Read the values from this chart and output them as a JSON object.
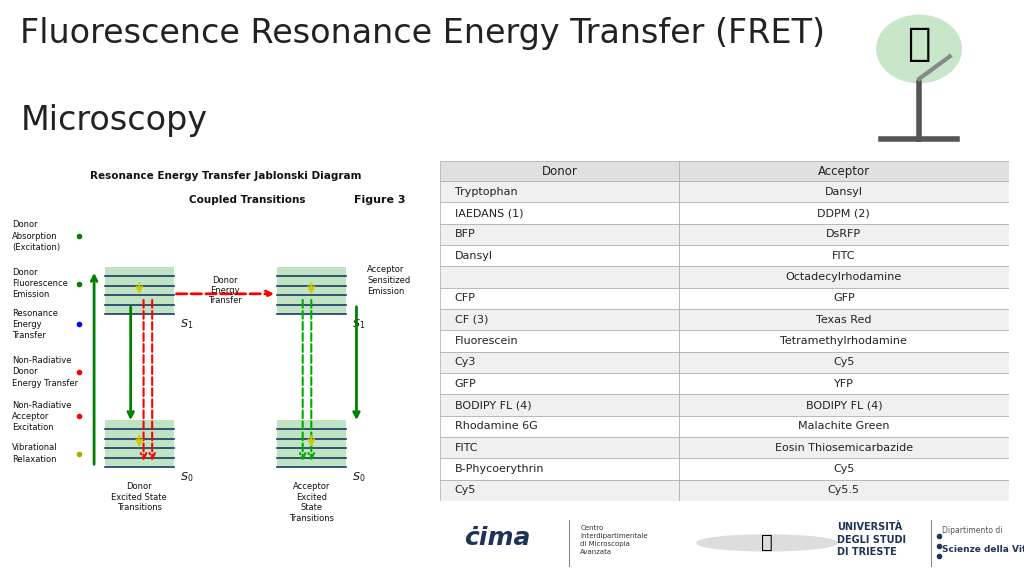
{
  "title_line1": "Fluorescence Resonance Energy Transfer (FRET)",
  "title_line2": "Microscopy",
  "title_fontsize": 24,
  "title_color": "#222222",
  "bg_color": "#ffffff",
  "footer_color": "#1e3456",
  "table_headers": [
    "Donor",
    "Acceptor"
  ],
  "table_rows": [
    [
      "Tryptophan",
      "Dansyl"
    ],
    [
      "IAEDANS (1)",
      "DDPM (2)"
    ],
    [
      "BFP",
      "DsRFP"
    ],
    [
      "Dansyl",
      "FITC"
    ],
    [
      "",
      "Octadecylrhodamine"
    ],
    [
      "CFP",
      "GFP"
    ],
    [
      "CF (3)",
      "Texas Red"
    ],
    [
      "Fluorescein",
      "Tetramethylrhodamine"
    ],
    [
      "Cy3",
      "Cy5"
    ],
    [
      "GFP",
      "YFP"
    ],
    [
      "BODIPY FL (4)",
      "BODIPY FL (4)"
    ],
    [
      "Rhodamine 6G",
      "Malachite Green"
    ],
    [
      "FITC",
      "Eosin Thiosemicarbazide"
    ],
    [
      "B-Phycoerythrin",
      "Cy5"
    ],
    [
      "Cy5",
      "Cy5.5"
    ]
  ],
  "table_header_bg": "#e0e0e0",
  "table_row_bg_odd": "#f0f0f0",
  "table_row_bg_even": "#ffffff",
  "table_border_color": "#aaaaaa",
  "table_text_color": "#222222",
  "table_fontsize": 8.5,
  "jablonski_title": "Resonance Energy Transfer Jablonski Diagram",
  "figure_label": "Figure 3",
  "footer_text_univ": "UNIVERSITÀ\nDEGLI STUDI\nDI TRIESTE"
}
